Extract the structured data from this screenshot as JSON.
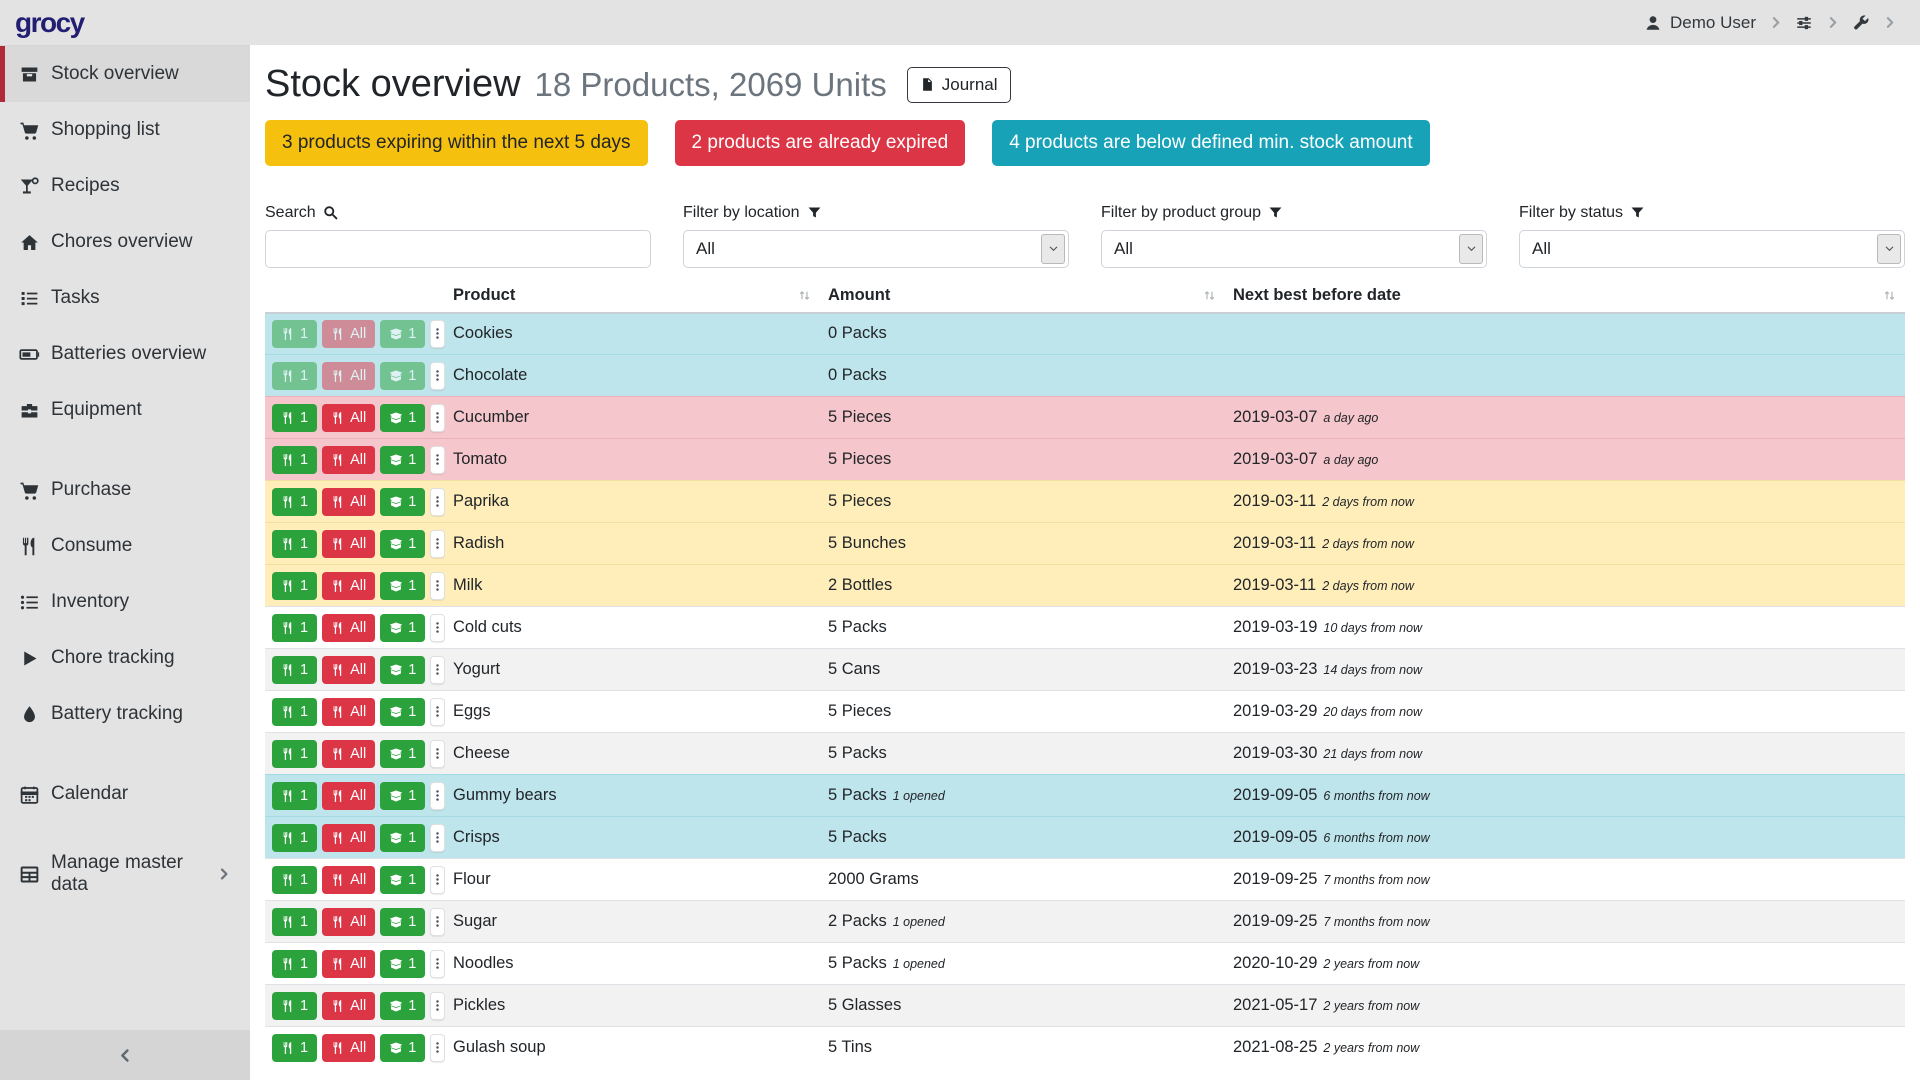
{
  "app": {
    "logo_text": "grocy"
  },
  "topbar": {
    "user_label": "Demo User",
    "icons": [
      "user-icon",
      "chevron-right-icon",
      "sliders-icon",
      "wrench-icon"
    ]
  },
  "sidebar": {
    "items": [
      {
        "slug": "stock-overview",
        "label": "Stock overview",
        "icon": "boxes",
        "active": true
      },
      {
        "slug": "shopping-list",
        "label": "Shopping list",
        "icon": "cart"
      },
      {
        "slug": "recipes",
        "label": "Recipes",
        "icon": "cocktail"
      },
      {
        "slug": "chores-overview",
        "label": "Chores overview",
        "icon": "home"
      },
      {
        "slug": "tasks",
        "label": "Tasks",
        "icon": "tasks"
      },
      {
        "slug": "batteries-overview",
        "label": "Batteries overview",
        "icon": "battery"
      },
      {
        "slug": "equipment",
        "label": "Equipment",
        "icon": "toolbox"
      },
      {
        "slug": "purchase",
        "label": "Purchase",
        "icon": "cart",
        "gap": true
      },
      {
        "slug": "consume",
        "label": "Consume",
        "icon": "utensils"
      },
      {
        "slug": "inventory",
        "label": "Inventory",
        "icon": "list"
      },
      {
        "slug": "chore-tracking",
        "label": "Chore tracking",
        "icon": "play"
      },
      {
        "slug": "battery-tracking",
        "label": "Battery tracking",
        "icon": "droplet"
      },
      {
        "slug": "calendar",
        "label": "Calendar",
        "icon": "calendar",
        "gap": true
      },
      {
        "slug": "manage-master-data",
        "label": "Manage master data",
        "icon": "table",
        "gap": true,
        "chevron": true
      }
    ]
  },
  "header": {
    "title": "Stock overview",
    "subtitle": "18 Products, 2069 Units",
    "journal_label": "Journal"
  },
  "banners": [
    {
      "id": "expiring",
      "text": "3 products expiring within the next 5 days",
      "style": "warning"
    },
    {
      "id": "expired",
      "text": "2 products are already expired",
      "style": "danger"
    },
    {
      "id": "below-min",
      "text": "4 products are below defined min. stock amount",
      "style": "info"
    }
  ],
  "filters": {
    "search_label": "Search",
    "search_value": "",
    "location_label": "Filter by location",
    "location_value": "All",
    "product_group_label": "Filter by product group",
    "product_group_value": "All",
    "status_label": "Filter by status",
    "status_value": "All"
  },
  "table": {
    "columns": [
      "Product",
      "Amount",
      "Next best before date"
    ],
    "row_buttons": {
      "consume_one": "1",
      "consume_all": "All",
      "open_one": "1"
    },
    "rows": [
      {
        "product": "Cookies",
        "amount": "0 Packs",
        "amount_extra": "",
        "date": "",
        "date_rel": "",
        "status": "info",
        "disabled": true,
        "striped": false
      },
      {
        "product": "Chocolate",
        "amount": "0 Packs",
        "amount_extra": "",
        "date": "",
        "date_rel": "",
        "status": "info",
        "disabled": true,
        "striped": false
      },
      {
        "product": "Cucumber",
        "amount": "5 Pieces",
        "amount_extra": "",
        "date": "2019-03-07",
        "date_rel": "a day ago",
        "status": "danger",
        "disabled": false,
        "striped": false
      },
      {
        "product": "Tomato",
        "amount": "5 Pieces",
        "amount_extra": "",
        "date": "2019-03-07",
        "date_rel": "a day ago",
        "status": "danger",
        "disabled": false,
        "striped": false
      },
      {
        "product": "Paprika",
        "amount": "5 Pieces",
        "amount_extra": "",
        "date": "2019-03-11",
        "date_rel": "2 days from now",
        "status": "warning",
        "disabled": false,
        "striped": false
      },
      {
        "product": "Radish",
        "amount": "5 Bunches",
        "amount_extra": "",
        "date": "2019-03-11",
        "date_rel": "2 days from now",
        "status": "warning",
        "disabled": false,
        "striped": false
      },
      {
        "product": "Milk",
        "amount": "2 Bottles",
        "amount_extra": "",
        "date": "2019-03-11",
        "date_rel": "2 days from now",
        "status": "warning",
        "disabled": false,
        "striped": false
      },
      {
        "product": "Cold cuts",
        "amount": "5 Packs",
        "amount_extra": "",
        "date": "2019-03-19",
        "date_rel": "10 days from now",
        "status": "none",
        "disabled": false,
        "striped": false
      },
      {
        "product": "Yogurt",
        "amount": "5 Cans",
        "amount_extra": "",
        "date": "2019-03-23",
        "date_rel": "14 days from now",
        "status": "none",
        "disabled": false,
        "striped": true
      },
      {
        "product": "Eggs",
        "amount": "5 Pieces",
        "amount_extra": "",
        "date": "2019-03-29",
        "date_rel": "20 days from now",
        "status": "none",
        "disabled": false,
        "striped": false
      },
      {
        "product": "Cheese",
        "amount": "5 Packs",
        "amount_extra": "",
        "date": "2019-03-30",
        "date_rel": "21 days from now",
        "status": "none",
        "disabled": false,
        "striped": true
      },
      {
        "product": "Gummy bears",
        "amount": "5 Packs",
        "amount_extra": "1 opened",
        "date": "2019-09-05",
        "date_rel": "6 months from now",
        "status": "info",
        "disabled": false,
        "striped": false
      },
      {
        "product": "Crisps",
        "amount": "5 Packs",
        "amount_extra": "",
        "date": "2019-09-05",
        "date_rel": "6 months from now",
        "status": "info",
        "disabled": false,
        "striped": false
      },
      {
        "product": "Flour",
        "amount": "2000 Grams",
        "amount_extra": "",
        "date": "2019-09-25",
        "date_rel": "7 months from now",
        "status": "none",
        "disabled": false,
        "striped": false
      },
      {
        "product": "Sugar",
        "amount": "2 Packs",
        "amount_extra": "1 opened",
        "date": "2019-09-25",
        "date_rel": "7 months from now",
        "status": "none",
        "disabled": false,
        "striped": true
      },
      {
        "product": "Noodles",
        "amount": "5 Packs",
        "amount_extra": "1 opened",
        "date": "2020-10-29",
        "date_rel": "2 years from now",
        "status": "none",
        "disabled": false,
        "striped": false
      },
      {
        "product": "Pickles",
        "amount": "5 Glasses",
        "amount_extra": "",
        "date": "2021-05-17",
        "date_rel": "2 years from now",
        "status": "none",
        "disabled": false,
        "striped": true
      },
      {
        "product": "Gulash soup",
        "amount": "5 Tins",
        "amount_extra": "",
        "date": "2021-08-25",
        "date_rel": "2 years from now",
        "status": "none",
        "disabled": false,
        "striped": false
      }
    ]
  },
  "colors": {
    "accent_red": "#b02a37",
    "logo": "#221f72",
    "banner_warning": "#f5c00e",
    "banner_danger": "#dc3545",
    "banner_info": "#17a2b8",
    "button_success": "#2ba23c",
    "button_danger": "#dc3545",
    "row_info": "#bee5eb",
    "row_danger": "#f5c6cb",
    "row_warning": "#ffeeba",
    "row_stripe": "#f2f2f2"
  }
}
